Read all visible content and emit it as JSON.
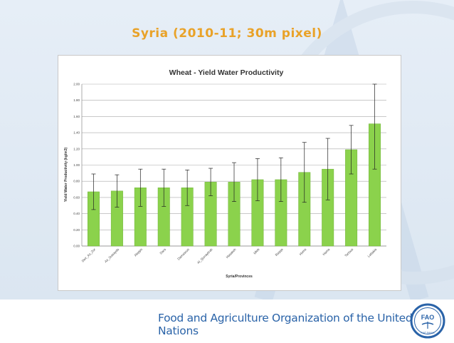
{
  "slide": {
    "title": "Syria (2010-11; 30m pixel)",
    "footer_text": "Food and Agriculture Organization of the United Nations",
    "logo_text": "FAO",
    "logo_motto": "FIAT PANIS"
  },
  "colors": {
    "title": "#e9a228",
    "bar": "#8bd24c",
    "bar_stroke": "#6fb236",
    "footer_text": "#2a63a8",
    "background": "#dde7f2"
  },
  "chart_data": {
    "type": "bar",
    "title": "Wheat - Yield Water Productivity",
    "xlabel": "Syria/Provinces",
    "ylabel": "Yield Water Productivity (kg/m3)",
    "ylim": [
      0,
      2
    ],
    "yticks": [
      "0.00",
      "0.20",
      "0.40",
      "0.60",
      "0.80",
      "1.00",
      "1.20",
      "1.40",
      "1.60",
      "1.80",
      "2.00"
    ],
    "grid": true,
    "legend": "none",
    "categories": [
      "Deir_Az_Zor",
      "As_Suwayda",
      "Aleppo",
      "Dara",
      "Damascus",
      "Al_Qunaytirah",
      "Hasakeh",
      "Idleb",
      "Raqqa",
      "Homs",
      "Hama",
      "Tartous",
      "Lattakia"
    ],
    "values": [
      0.67,
      0.68,
      0.72,
      0.72,
      0.72,
      0.79,
      0.79,
      0.82,
      0.82,
      0.91,
      0.95,
      1.19,
      1.51
    ],
    "error": [
      0.22,
      0.2,
      0.23,
      0.23,
      0.22,
      0.17,
      0.24,
      0.26,
      0.27,
      0.37,
      0.38,
      0.3,
      0.56
    ]
  }
}
